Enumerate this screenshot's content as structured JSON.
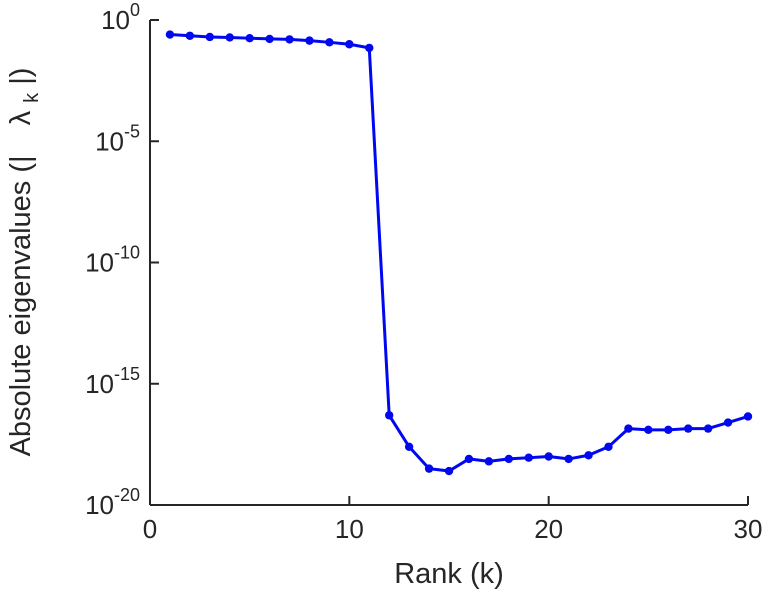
{
  "figure": {
    "background": "#ffffff",
    "axis_color": "#262626"
  },
  "chart_data": {
    "type": "line",
    "title": "",
    "xlabel": "Rank (k)",
    "ylabel_prefix": "Absolute eigenvalues (|",
    "ylabel_symbol": "λ",
    "ylabel_subscript": "k",
    "ylabel_suffix": "|)",
    "y_scale": "log10",
    "x": [
      1,
      2,
      3,
      4,
      5,
      6,
      7,
      8,
      9,
      10,
      11,
      12,
      13,
      14,
      15,
      16,
      17,
      18,
      19,
      20,
      21,
      22,
      23,
      24,
      25,
      26,
      27,
      28,
      29,
      30
    ],
    "log10_abs_eigenvalues": [
      -0.6,
      -0.65,
      -0.7,
      -0.72,
      -0.75,
      -0.78,
      -0.8,
      -0.85,
      -0.92,
      -1.0,
      -1.15,
      -16.3,
      -17.6,
      -18.5,
      -18.6,
      -18.1,
      -18.2,
      -18.1,
      -18.05,
      -18.0,
      -18.1,
      -17.95,
      -17.6,
      -16.85,
      -16.9,
      -16.9,
      -16.85,
      -16.85,
      -16.6,
      -16.35
    ],
    "xlim": [
      0,
      30
    ],
    "ylim_log10": [
      -20,
      0
    ],
    "xticks": [
      0,
      10,
      20,
      30
    ],
    "ytick_base": "10",
    "ytick_exponents": [
      0,
      -5,
      -10,
      -15,
      -20
    ],
    "line_color": "#0008f0",
    "marker": "circle",
    "marker_size": 4.2,
    "line_width": 3,
    "grid": false,
    "legend": null
  }
}
